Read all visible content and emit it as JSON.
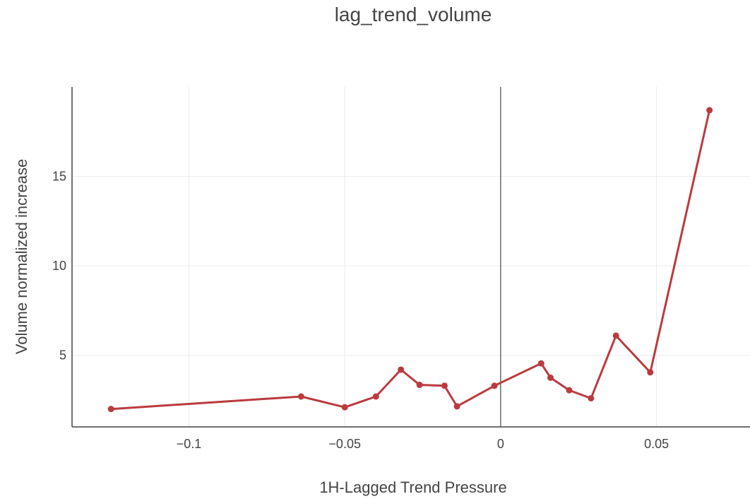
{
  "chart_data": {
    "type": "line",
    "title": "lag_trend_volume",
    "xlabel": "1H-Lagged Trend Pressure",
    "ylabel": "Volume normalized increase",
    "xlim": [
      -0.1375,
      0.08
    ],
    "ylim": [
      1.0,
      20.0
    ],
    "xticks": [
      -0.1,
      -0.05,
      0,
      0.05
    ],
    "xtick_labels": [
      "−0.1",
      "−0.05",
      "0",
      "0.05"
    ],
    "yticks": [
      5,
      10,
      15
    ],
    "ytick_labels": [
      "5",
      "10",
      "15"
    ],
    "grid": true,
    "series_color": "#bb3a3e",
    "series": [
      {
        "x": [
          -0.125,
          -0.064,
          -0.05,
          -0.04,
          -0.032,
          -0.026,
          -0.018,
          -0.014,
          -0.002,
          0.013,
          0.016,
          0.022,
          0.029,
          0.037,
          0.048,
          0.067
        ],
        "y": [
          2.0,
          2.7,
          2.1,
          2.7,
          4.2,
          3.35,
          3.3,
          2.15,
          3.3,
          4.55,
          3.75,
          3.05,
          2.6,
          6.1,
          4.05,
          18.7
        ]
      }
    ]
  }
}
